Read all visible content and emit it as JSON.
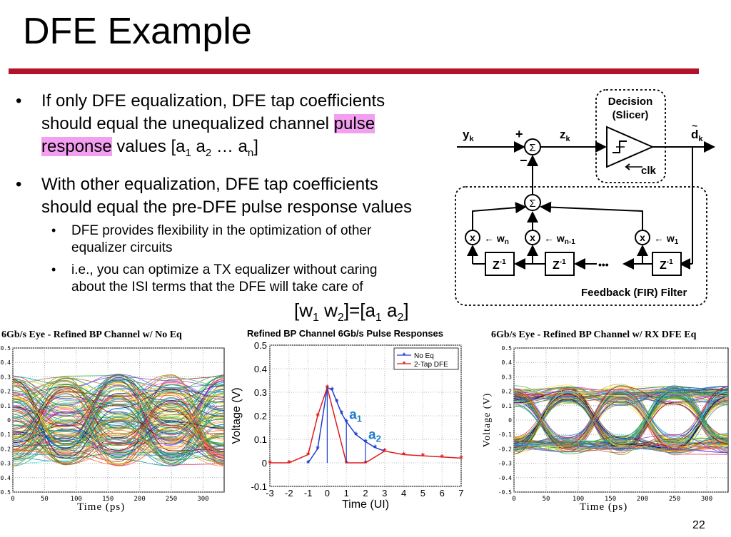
{
  "title": "DFE Example",
  "bullet1": {
    "line1": "If only DFE equalization, DFE tap coefficients",
    "line2_a": "should equal the unequalized channel ",
    "line2_hl": "pulse",
    "line3_hl": "response",
    "line3_b": " values [a",
    "s1": "1",
    "sp1": " a",
    "s2": "2",
    "dots": " … a",
    "sn": "n",
    "close": "]"
  },
  "bullet2": {
    "line1": "With other equalization, DFE tap coefficients",
    "line2": "should equal the pre-DFE pulse response values",
    "sub1_l1": "DFE provides flexibility in the optimization of other",
    "sub1_l2": "equalizer circuits",
    "sub2_l1": "i.e., you can optimize a TX equalizer without caring",
    "sub2_l2": "about the ISI terms that the DFE will take care of"
  },
  "equation": {
    "open": "[w",
    "s1": "1",
    "mid": " w",
    "s2": "2",
    "eq": "]=[a",
    "s3": "1",
    "mid2": " a",
    "s4": "2",
    "close": "]"
  },
  "diagram": {
    "yk": "y",
    "yk_sub": "k",
    "plus": "+",
    "minus": "−",
    "sigma": "Σ",
    "zk": "z",
    "zk_sub": "k",
    "decision": "Decision",
    "slicer": "(Slicer)",
    "clk": "clk",
    "dk": "d",
    "dk_sub": "k",
    "mult": "x",
    "wn": "w",
    "wn_sub": "n",
    "wn1": "w",
    "wn1_sub": "n-1",
    "w1": "w",
    "w1_sub": "1",
    "zinv": "Z",
    "zinv_sup": "-1",
    "ellipsis": "•••",
    "filter_label": "Feedback (FIR) Filter"
  },
  "eye_left": {
    "title": "6Gb/s Eye - Refined BP Channel w/ No Eq",
    "xlabel": "Time (ps)",
    "yticks": [
      "0.5",
      "0.4",
      "0.3",
      "0.2",
      "0.1",
      "0",
      "-0.1",
      "-0.2",
      "-0.3",
      "-0.4",
      "-0.5"
    ],
    "xticks": [
      "0",
      "50",
      "100",
      "150",
      "200",
      "250",
      "300"
    ]
  },
  "eye_right": {
    "title": "6Gb/s Eye - Refined BP Channel w/ RX DFE Eq",
    "xlabel": "Time (ps)",
    "ylabel": "Voltage (V)",
    "yticks": [
      "0.5",
      "0.4",
      "0.3",
      "0.2",
      "0.1",
      "0",
      "-0.1",
      "-0.2",
      "-0.3",
      "-0.4",
      "-0.5"
    ],
    "xticks": [
      "0",
      "50",
      "100",
      "150",
      "200",
      "250",
      "300"
    ]
  },
  "chart_data": [
    {
      "type": "line",
      "title": "Refined BP Channel 6Gb/s Pulse Responses",
      "xlabel": "Time (UI)",
      "ylabel": "Voltage (V)",
      "xlim": [
        -3,
        7
      ],
      "ylim": [
        -0.1,
        0.5
      ],
      "xticks": [
        "-3",
        "-2",
        "-1",
        "0",
        "1",
        "2",
        "3",
        "4",
        "5",
        "6",
        "7"
      ],
      "yticks": [
        "0.5",
        "0.4",
        "0.3",
        "0.2",
        "0.1",
        "0",
        "-0.1"
      ],
      "grid": true,
      "legend_position": "top-right",
      "series": [
        {
          "name": "No Eq",
          "color": "#1f3fd0",
          "x": [
            -1.0,
            -0.5,
            0,
            0.25,
            0.5,
            0.75,
            1,
            1.5,
            2,
            2.5,
            3
          ],
          "y": [
            0.0,
            0.06,
            0.32,
            0.31,
            0.26,
            0.21,
            0.175,
            0.12,
            0.09,
            0.065,
            0.05
          ]
        },
        {
          "name": "2-Tap DFE",
          "color": "#e01b1b",
          "x": [
            -3,
            -2,
            -1,
            -0.5,
            0,
            1,
            2,
            3,
            4,
            5,
            6,
            7
          ],
          "y": [
            0,
            0,
            0.035,
            0.2,
            0.32,
            0,
            0,
            0.05,
            0.035,
            0.03,
            0.025,
            0.02
          ]
        }
      ],
      "annotations": [
        {
          "text": "a",
          "sub": "1",
          "x": 1,
          "y": 0.175
        },
        {
          "text": "a",
          "sub": "2",
          "x": 2,
          "y": 0.09
        }
      ]
    }
  ],
  "page_number": "22"
}
